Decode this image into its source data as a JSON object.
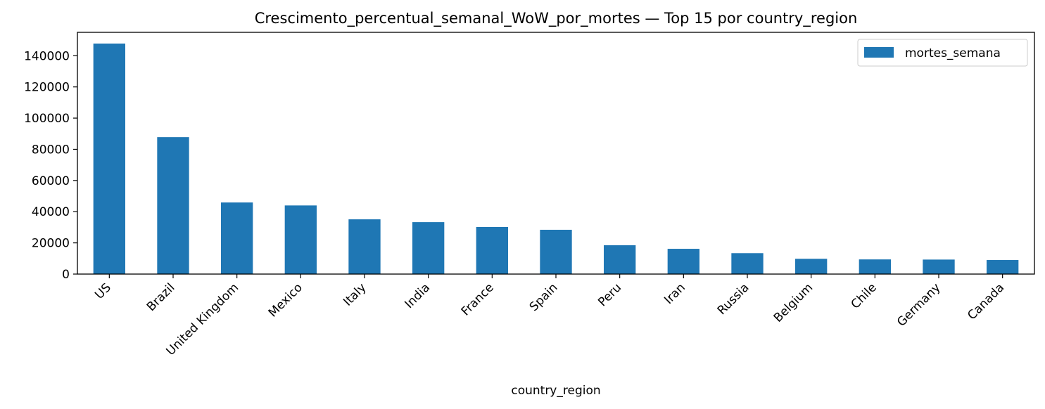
{
  "chart_data": {
    "type": "bar",
    "title": "Crescimento_percentual_semanal_WoW_por_mortes — Top 15 por country_region",
    "xlabel": "country_region",
    "ylabel": "",
    "categories": [
      "US",
      "Brazil",
      "United Kingdom",
      "Mexico",
      "Italy",
      "India",
      "France",
      "Spain",
      "Peru",
      "Iran",
      "Russia",
      "Belgium",
      "Chile",
      "Germany",
      "Canada"
    ],
    "series": [
      {
        "name": "mortes_semana",
        "color": "#1f77b4",
        "values": [
          147800,
          87800,
          45900,
          44000,
          35100,
          33300,
          30200,
          28400,
          18500,
          16200,
          13400,
          9800,
          9400,
          9300,
          9000
        ]
      }
    ],
    "ylim": [
      0,
      155000
    ],
    "yticks": [
      0,
      20000,
      40000,
      60000,
      80000,
      100000,
      120000,
      140000
    ],
    "grid": false,
    "legend": "top-right"
  }
}
